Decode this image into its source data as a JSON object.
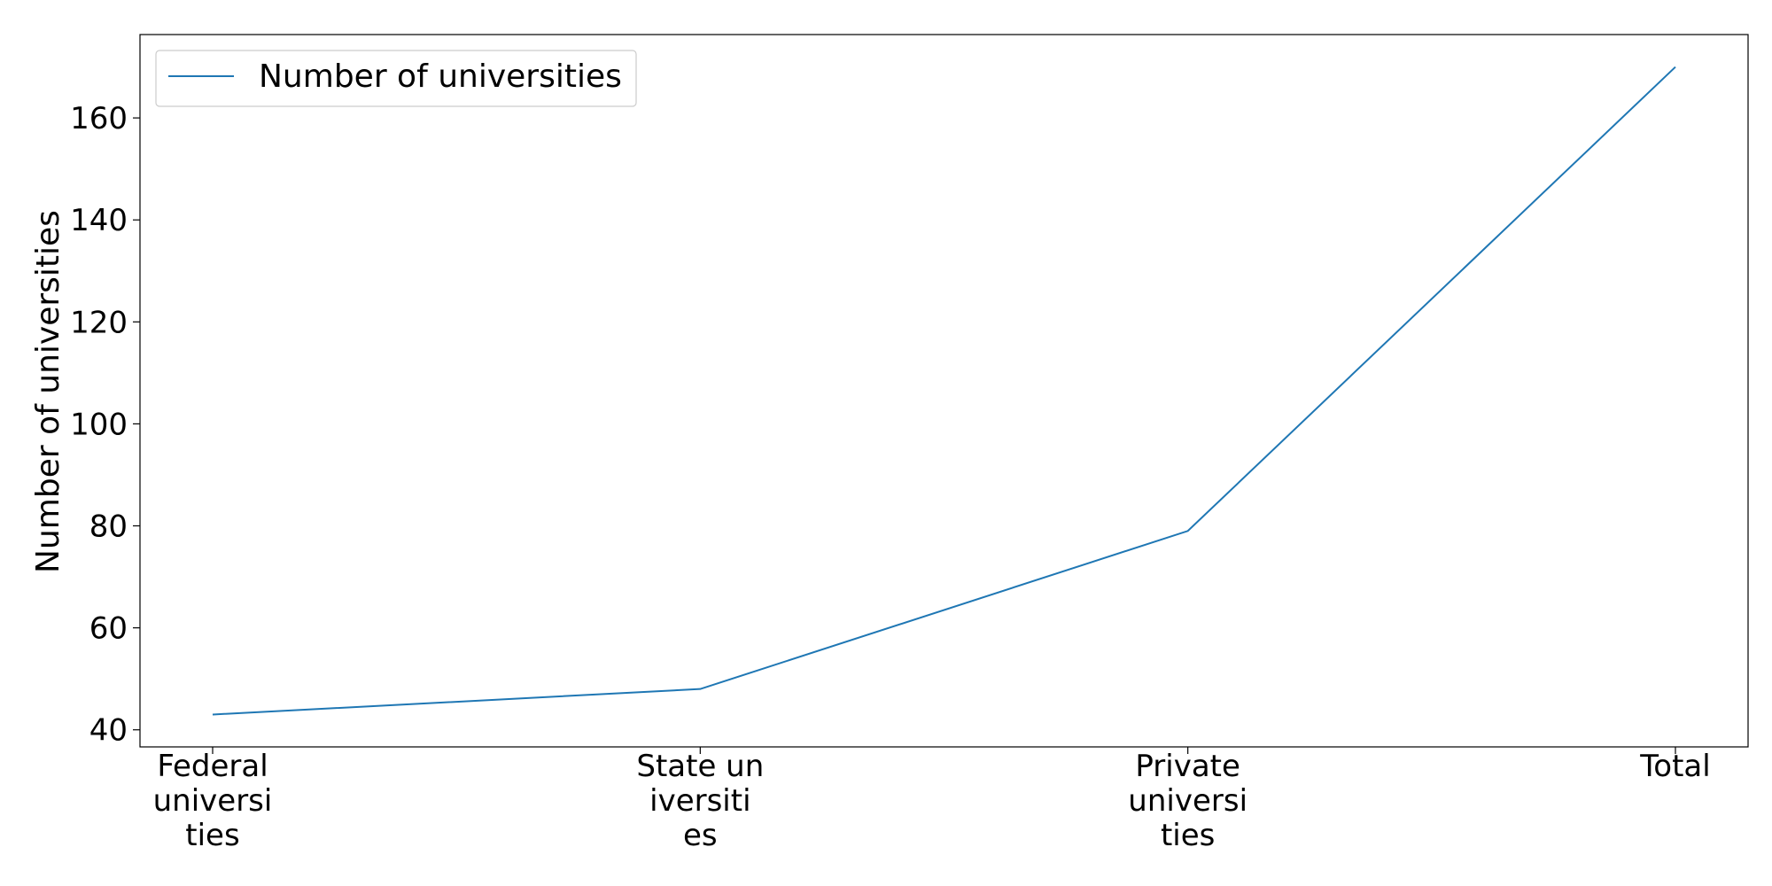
{
  "chart_data": {
    "type": "line",
    "title": "",
    "xlabel": "",
    "ylabel": "Number of universities",
    "categories": [
      [
        "Federal",
        "universi",
        "ties"
      ],
      [
        "State un",
        "iversiti",
        "es"
      ],
      [
        "Private",
        "universi",
        "ties"
      ],
      [
        "Total"
      ]
    ],
    "series": [
      {
        "name": "Number of universities",
        "values": [
          43,
          48,
          79,
          170
        ],
        "color": "#1f77b4"
      }
    ],
    "yticks": [
      40,
      60,
      80,
      100,
      120,
      140,
      160
    ],
    "ylim": [
      36.65,
      176.35
    ],
    "grid": false,
    "legend": "top-left"
  }
}
